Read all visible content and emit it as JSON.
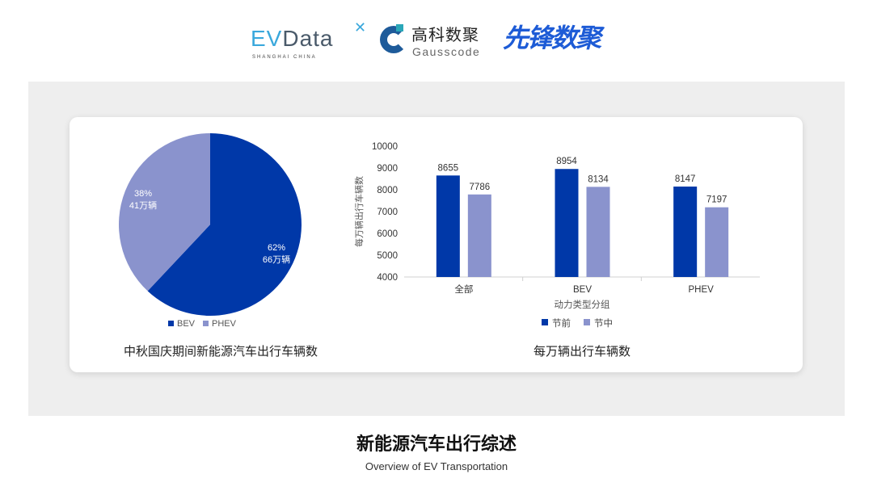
{
  "logos": {
    "evdata": {
      "ev": "EV",
      "data": "Data",
      "sub": "SHANGHAI CHINA"
    },
    "gausscode": {
      "cn": "高科数聚",
      "en": "Gausscode"
    },
    "xianfeng": {
      "cn": "先锋数聚"
    }
  },
  "chart_data": [
    {
      "type": "pie",
      "title": "中秋国庆期间新能源汽车出行车辆数",
      "legend_position": "bottom",
      "slices": [
        {
          "name": "BEV",
          "percent": 62,
          "label": "66万辆",
          "color": "#0038a8"
        },
        {
          "name": "PHEV",
          "percent": 38,
          "label": "41万辆",
          "color": "#8a93cd"
        }
      ]
    },
    {
      "type": "bar",
      "title": "每万辆出行车辆数",
      "xlabel": "动力类型分组",
      "ylabel": "每万辆出行车辆数",
      "ylim": [
        4000,
        10000
      ],
      "yticks": [
        4000,
        5000,
        6000,
        7000,
        8000,
        9000,
        10000
      ],
      "categories": [
        "全部",
        "BEV",
        "PHEV"
      ],
      "legend_position": "bottom",
      "grid": false,
      "series": [
        {
          "name": "节前",
          "values": [
            8655,
            8954,
            8147
          ],
          "color": "#0038a8"
        },
        {
          "name": "节中",
          "values": [
            7786,
            8134,
            7197
          ],
          "color": "#8a93cd"
        }
      ]
    }
  ],
  "footer": {
    "title": "新能源汽车出行综述",
    "subtitle": "Overview of EV Transportation"
  }
}
